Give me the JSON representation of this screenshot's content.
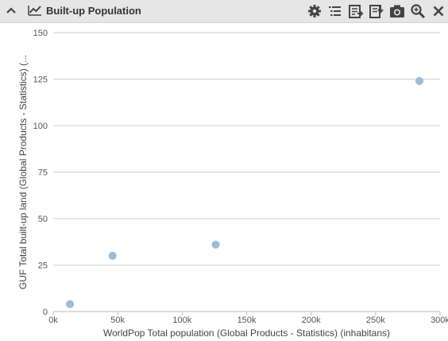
{
  "panel": {
    "title": "Built-up Population",
    "colors": {
      "header_bg": "#e6e6e6",
      "icon": "#4a4a4a",
      "point": "#9dbcd8",
      "grid": "#cfcfcf"
    },
    "icons": [
      "chevron-up-icon",
      "line-chart-icon",
      "gear-icon",
      "list-icon",
      "export-data-icon",
      "download-icon",
      "camera-icon",
      "zoom-icon",
      "close-icon"
    ]
  },
  "chart_data": {
    "type": "scatter",
    "title": "",
    "xlabel": "WorldPop Total population (Global Products - Statistics) (inhabitans)",
    "ylabel": "GUF Total built-up land (Global Products - Statistics) (...",
    "xlim": [
      0,
      300000
    ],
    "ylim": [
      0,
      150
    ],
    "x_ticks": [
      0,
      50000,
      100000,
      150000,
      200000,
      250000,
      300000
    ],
    "x_tick_labels": [
      "0k",
      "50k",
      "100k",
      "150k",
      "200k",
      "250k",
      "300k"
    ],
    "y_ticks": [
      0,
      25,
      50,
      75,
      100,
      125,
      150
    ],
    "y_tick_labels": [
      "0",
      "25",
      "50",
      "75",
      "100",
      "125",
      "150"
    ],
    "grid": "horizontal",
    "points": [
      {
        "x": 13000,
        "y": 4
      },
      {
        "x": 46000,
        "y": 30
      },
      {
        "x": 126000,
        "y": 36
      },
      {
        "x": 284000,
        "y": 124
      }
    ]
  }
}
